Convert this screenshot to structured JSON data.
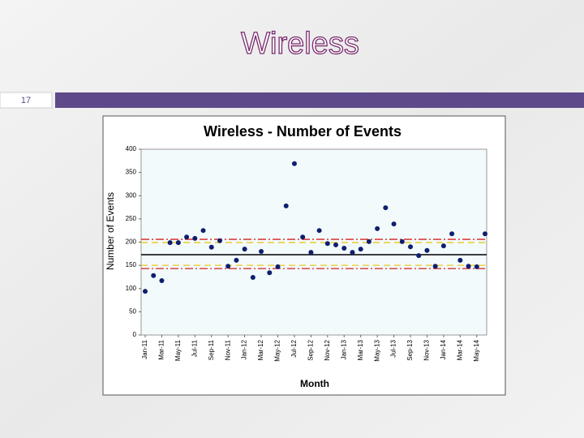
{
  "slide": {
    "title": "Wireless",
    "number": "17"
  },
  "chart_data": {
    "type": "scatter",
    "title": "Wireless - Number of Events",
    "x_label": "Month",
    "y_label": "Number of Events",
    "categories": [
      "Jan-11",
      null,
      "Mar-11",
      null,
      "May-11",
      null,
      "Jul-11",
      null,
      "Sep-11",
      null,
      "Nov-11",
      null,
      "Jan-12",
      null,
      "Mar-12",
      null,
      "May-12",
      null,
      "Jul-12",
      null,
      "Sep-12",
      null,
      "Nov-12",
      null,
      "Jan-13",
      null,
      "Mar-13",
      null,
      "May-13",
      null,
      "Jul-13",
      null,
      "Sep-13",
      null,
      "Nov-13",
      null,
      "Jan-14",
      null,
      "Mar-14",
      null,
      "May-14",
      null
    ],
    "values": [
      94,
      128,
      117,
      199,
      199,
      211,
      208,
      225,
      189,
      203,
      148,
      161,
      185,
      124,
      180,
      134,
      147,
      278,
      369,
      211,
      178,
      225,
      197,
      194,
      187,
      178,
      185,
      201,
      229,
      274,
      239,
      201,
      190,
      171,
      182,
      148,
      192,
      218,
      161,
      148,
      147,
      218
    ],
    "color": "#0d1f6e",
    "reference_lines": [
      {
        "value": 173,
        "color": "#000000",
        "style": "solid"
      },
      {
        "value": 206,
        "color": "#d62020",
        "style": "dashdot"
      },
      {
        "value": 143,
        "color": "#d62020",
        "style": "dashdot"
      },
      {
        "value": 199,
        "color": "#e8c81a",
        "style": "dash"
      },
      {
        "value": 150,
        "color": "#e8c81a",
        "style": "dash"
      }
    ],
    "ylim": [
      0,
      400
    ],
    "yticks": [
      0,
      50,
      100,
      150,
      200,
      250,
      300,
      350,
      400
    ]
  }
}
